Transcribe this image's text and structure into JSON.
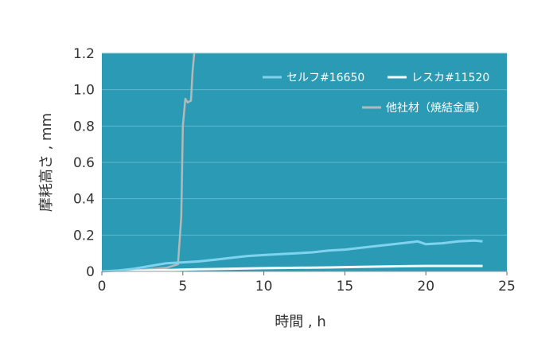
{
  "chart_data": {
    "type": "line",
    "xlabel": "時間 , h",
    "ylabel": "摩耗高さ , mm",
    "xlim": [
      0,
      25
    ],
    "ylim": [
      0,
      1.2
    ],
    "x_ticks": [
      "0",
      "5",
      "10",
      "15",
      "20",
      "25"
    ],
    "y_ticks": [
      "0",
      "0.2",
      "0.4",
      "0.6",
      "0.8",
      "1.0",
      "1.2"
    ],
    "grid": true,
    "legend_position": "top-right",
    "colors": {
      "plot_background": "#2b9bb5",
      "grid": "#5fb8cc",
      "axis_text": "#333333"
    },
    "series": [
      {
        "name": "セルフ#16650",
        "color": "#7fd3ee",
        "x": [
          0,
          1,
          2,
          3,
          4,
          5,
          6,
          7,
          8,
          9,
          10,
          11,
          12,
          13,
          14,
          15,
          16,
          17,
          18,
          19,
          19.5,
          20,
          21,
          22,
          23,
          23.5
        ],
        "y": [
          0,
          0.005,
          0.015,
          0.03,
          0.045,
          0.05,
          0.055,
          0.065,
          0.075,
          0.085,
          0.09,
          0.095,
          0.1,
          0.105,
          0.115,
          0.12,
          0.13,
          0.14,
          0.15,
          0.16,
          0.165,
          0.15,
          0.155,
          0.165,
          0.17,
          0.165
        ]
      },
      {
        "name": "レスカ#11520",
        "color": "#f4fbfd",
        "x": [
          0,
          2,
          4,
          6,
          8,
          10,
          12,
          14,
          16,
          18,
          20,
          22,
          23.5
        ],
        "y": [
          0,
          0.003,
          0.008,
          0.012,
          0.015,
          0.018,
          0.02,
          0.022,
          0.025,
          0.028,
          0.03,
          0.03,
          0.03
        ]
      },
      {
        "name": "他社材（焼結金属）",
        "color": "#b3b9b8",
        "x": [
          0,
          2,
          4,
          4.7,
          4.9,
          5.0,
          5.15,
          5.3,
          5.5,
          5.6,
          5.7
        ],
        "y": [
          0,
          0.005,
          0.02,
          0.04,
          0.3,
          0.8,
          0.95,
          0.93,
          0.94,
          1.1,
          1.2
        ]
      }
    ]
  }
}
